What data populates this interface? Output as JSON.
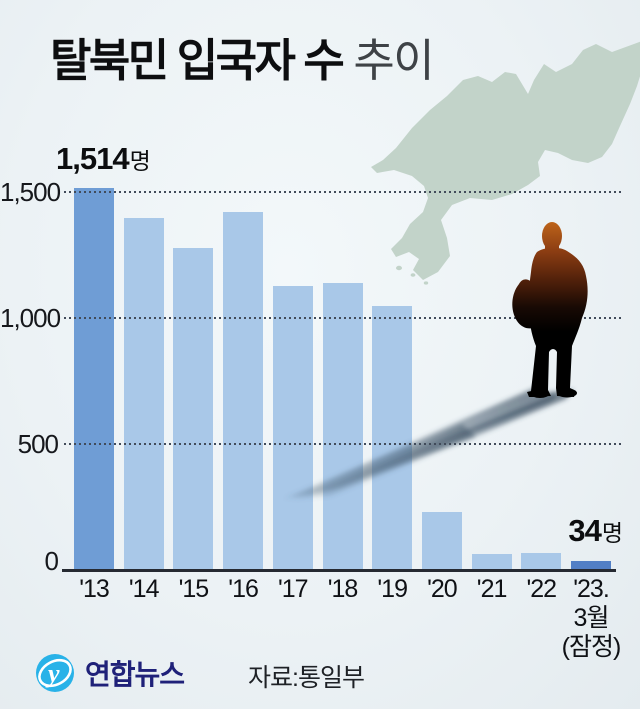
{
  "title": {
    "main": "탈북민 입국자 수",
    "sub": "추이"
  },
  "annotations": {
    "first": {
      "value": "1,514",
      "unit": "명"
    },
    "last": {
      "value": "34",
      "unit": "명"
    }
  },
  "chart_data": {
    "type": "bar",
    "title": "탈북민 입국자 수 추이",
    "categories": [
      "'13",
      "'14",
      "'15",
      "'16",
      "'17",
      "'18",
      "'19",
      "'20",
      "'21",
      "'22",
      "'23.\n3월\n(잠정)"
    ],
    "values": [
      1514,
      1397,
      1275,
      1418,
      1127,
      1137,
      1047,
      229,
      63,
      67,
      34
    ],
    "unit": "명",
    "ylim": [
      0,
      1600
    ],
    "yticks": [
      0,
      500,
      1000,
      1500
    ],
    "ytick_labels": [
      "0",
      "500",
      "1,000",
      "1,500"
    ],
    "grid": "horizontal-dotted",
    "legend": "none",
    "bar_colors": {
      "first": "#6f9dd5",
      "default": "#a9c8e8",
      "last": "#527fc5"
    },
    "note_last_bar": "'23. 3월 (잠정)"
  },
  "art": {
    "map": "north-korea-map-silhouette",
    "map_color": "#c2d3c9",
    "person": "standing-defector-silhouette",
    "shadow_color": "#2f4456"
  },
  "footer": {
    "brand": "연합뉴스",
    "logo_glyph": "y",
    "logo_color": "#29b2e8",
    "source": "자료:통일부"
  }
}
